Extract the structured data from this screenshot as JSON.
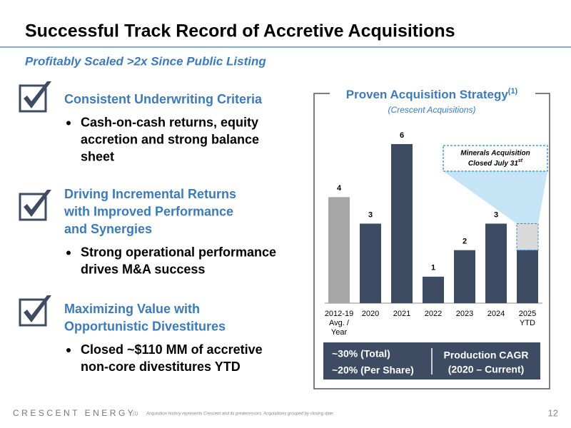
{
  "title": "Successful Track Record of Accretive Acquisitions",
  "subtitle": "Profitably Scaled >2x Since Public Listing",
  "sections": [
    {
      "heading": [
        "Consistent Underwriting Criteria"
      ],
      "bullet": [
        "Cash-on-cash returns, equity",
        "accretion and strong balance",
        "sheet"
      ]
    },
    {
      "heading": [
        "Driving Incremental Returns",
        "with Improved Performance",
        "and Synergies"
      ],
      "bullet": [
        "Strong operational performance",
        "drives M&A success"
      ]
    },
    {
      "heading": [
        "Maximizing Value with",
        "Opportunistic Divestitures"
      ],
      "bullet": [
        "Closed ~$110 MM of accretive",
        "non-core divestitures YTD"
      ]
    }
  ],
  "chart_data": {
    "type": "bar",
    "title": {
      "text": "Proven Acquisition Strategy",
      "sup": "(1)"
    },
    "subtitle": "(Crescent Acquisitions)",
    "categories": [
      [
        "2012-19",
        "Avg. /",
        "Year"
      ],
      [
        "2020"
      ],
      [
        "2021"
      ],
      [
        "2022"
      ],
      [
        "2023"
      ],
      [
        "2024"
      ],
      [
        "2025",
        "YTD"
      ]
    ],
    "values": [
      4,
      3,
      6,
      1,
      2,
      3,
      3
    ],
    "colors": [
      "#a6a6a6",
      "#3d4b63",
      "#3d4b63",
      "#3d4b63",
      "#3d4b63",
      "#3d4b63",
      "#3d4b63"
    ],
    "ylim": [
      0,
      6
    ],
    "callout": {
      "index": 6,
      "value": 1,
      "color": "#d9d9d9",
      "lines": [
        "Minerals Acquisition",
        "Closed July 31"
      ],
      "sup": "st"
    }
  },
  "summary": {
    "left": [
      "~30% (Total)",
      "~20% (Per Share)"
    ],
    "right": [
      "Production CAGR",
      "(2020 – Current)"
    ]
  },
  "footer": {
    "brand": "CRESCENT ENERGY",
    "note_mark": "(1)",
    "note": "Acquisition history represents Crescent and its predecessors. Acquisitions grouped by closing date.",
    "page": "12"
  }
}
